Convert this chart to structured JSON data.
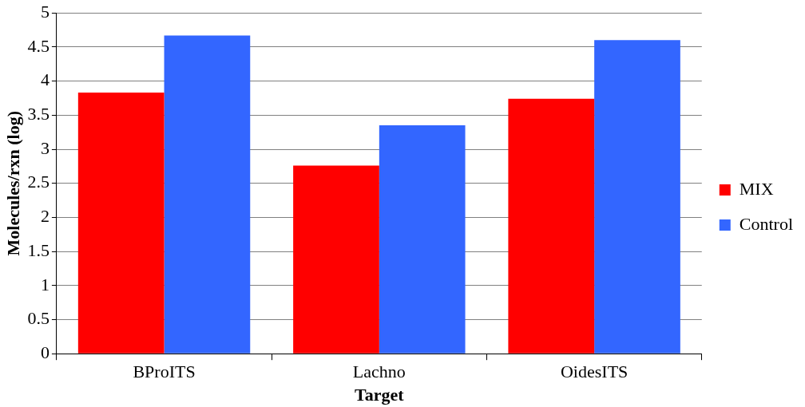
{
  "chart_data": {
    "type": "bar",
    "xlabel": "Target",
    "ylabel": "Molecules/rxn (log)",
    "categories": [
      "BProITS",
      "Lachno",
      "OidesITS"
    ],
    "series": [
      {
        "name": "MIX",
        "color": "#ff0000",
        "values": [
          3.83,
          2.76,
          3.74
        ]
      },
      {
        "name": "Control",
        "color": "#3366ff",
        "values": [
          4.67,
          3.35,
          4.6
        ]
      }
    ],
    "ylim": [
      0,
      5
    ],
    "yticks": [
      0,
      0.5,
      1,
      1.5,
      2,
      2.5,
      3,
      3.5,
      4,
      4.5,
      5
    ],
    "grid": "y",
    "legend": "right"
  }
}
